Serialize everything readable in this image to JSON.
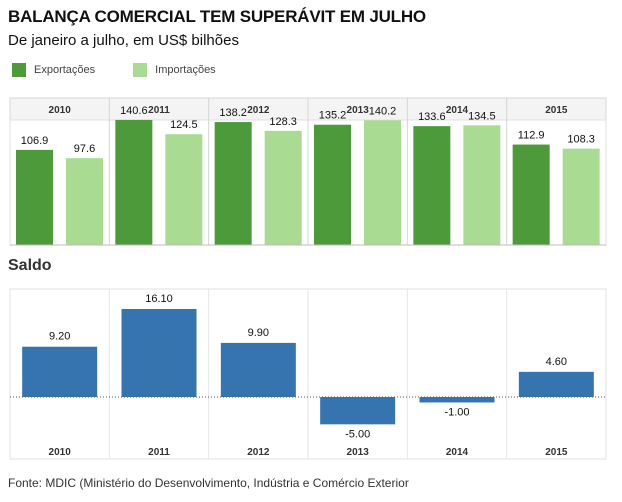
{
  "header": {
    "title": "BALANÇA COMERCIAL TEM SUPERÁVIT EM JULHO",
    "subtitle": "De janeiro a julho, em US$ bilhões"
  },
  "legend": {
    "items": [
      {
        "label": "Exportações",
        "color": "#4c9a3a"
      },
      {
        "label": "Importações",
        "color": "#a9db93"
      }
    ]
  },
  "saldo_title": "Saldo",
  "source": "Fonte: MDIC (Ministério do Desenvolvimento, Indústria e Comércio Exterior",
  "chart_data": [
    {
      "type": "bar",
      "categories": [
        "2010",
        "2011",
        "2012",
        "2013",
        "2014",
        "2015"
      ],
      "series": [
        {
          "name": "Exportações",
          "values": [
            106.9,
            140.6,
            138.2,
            135.2,
            133.6,
            112.9
          ],
          "labels": [
            "106.9",
            "140.6",
            "138.2",
            "135.2",
            "133.6",
            "112.9"
          ],
          "color": "#4c9a3a"
        },
        {
          "name": "Importações",
          "values": [
            97.6,
            124.5,
            128.3,
            140.2,
            134.5,
            108.3
          ],
          "labels": [
            "97.6",
            "124.5",
            "128.3",
            "140.2",
            "134.5",
            "108.3"
          ],
          "color": "#a9db93"
        }
      ],
      "title": "",
      "xlabel": "",
      "ylabel": "",
      "ylim": [
        0,
        145
      ],
      "grid": false,
      "legend": "top-left"
    },
    {
      "type": "bar",
      "title": "Saldo",
      "categories": [
        "2010",
        "2011",
        "2012",
        "2013",
        "2014",
        "2015"
      ],
      "values": [
        9.2,
        16.1,
        9.9,
        -5.0,
        -1.0,
        4.6
      ],
      "labels": [
        "9.20",
        "16.10",
        "9.90",
        "-5.00",
        "-1.00",
        "4.60"
      ],
      "color": "#3674b0",
      "xlabel": "",
      "ylabel": "",
      "ylim": [
        -6.5,
        18.5
      ],
      "grid": false
    }
  ]
}
